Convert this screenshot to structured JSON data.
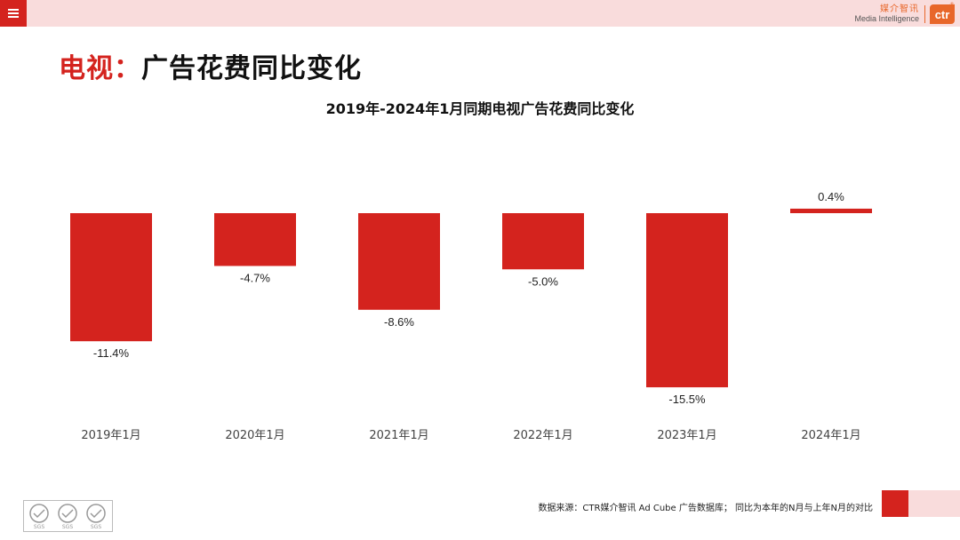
{
  "header": {
    "brand_cn": "媒介智讯",
    "brand_en": "Media Intelligence",
    "brand_logo": "ctr",
    "brand_reg": "®"
  },
  "page_title": {
    "prefix": "电视：",
    "main": "广告花费同比变化"
  },
  "chart_data": {
    "type": "bar",
    "title": "2019年-2024年1月同期电视广告花费同比变化",
    "categories": [
      "2019年1月",
      "2020年1月",
      "2021年1月",
      "2022年1月",
      "2023年1月",
      "2024年1月"
    ],
    "values": [
      -11.4,
      -4.7,
      -8.6,
      -5.0,
      -15.5,
      0.4
    ],
    "data_labels": [
      "-11.4%",
      "-4.7%",
      "-8.6%",
      "-5.0%",
      "-15.5%",
      "0.4%"
    ],
    "unit": "%",
    "ylim": [
      -16,
      1
    ],
    "xlabel": "",
    "ylabel": "",
    "grid": false,
    "legend": "none",
    "bar_color": "#d4231e"
  },
  "footer": {
    "note": "数据来源：CTR媒介智讯 Ad Cube 广告数据库；  同比为本年的N月与上年N月的对比",
    "certification": "SGS"
  },
  "colors": {
    "accent": "#d4231e",
    "brand": "#e8672a",
    "light_band": "#f9dcdc"
  }
}
